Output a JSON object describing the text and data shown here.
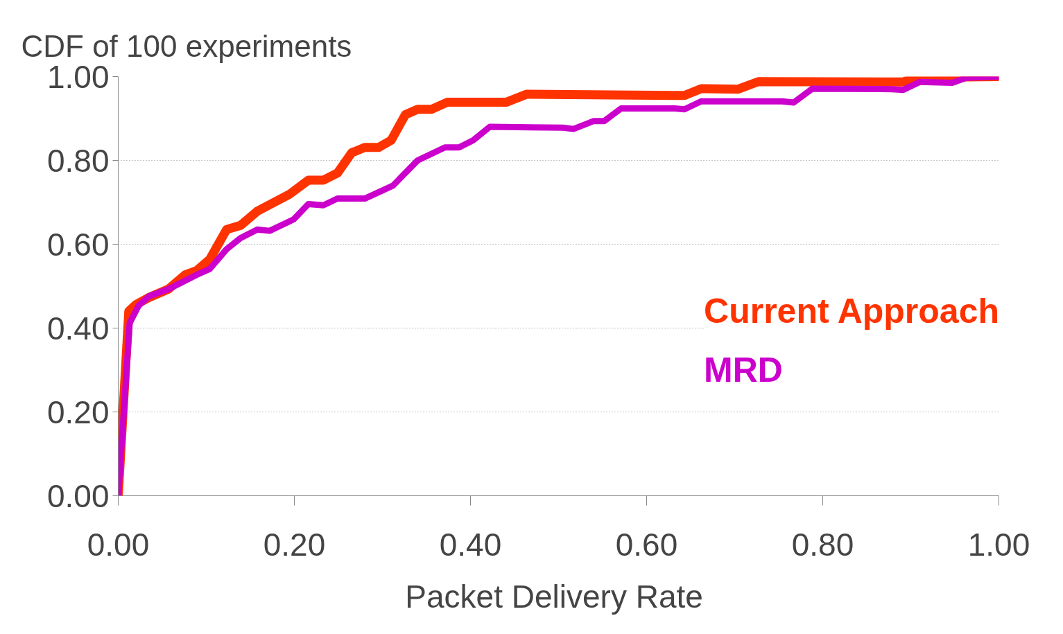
{
  "chart_data": {
    "type": "line",
    "title": "CDF of 100 experiments",
    "xlabel": "Packet Delivery  Rate",
    "xlim": [
      0,
      1
    ],
    "ylim": [
      0,
      1
    ],
    "xticks": [
      {
        "value": 0,
        "label": "0.00"
      },
      {
        "value": 0.2,
        "label": "0.20"
      },
      {
        "value": 0.4,
        "label": "0.40"
      },
      {
        "value": 0.6,
        "label": "0.60"
      },
      {
        "value": 0.8,
        "label": "0.80"
      },
      {
        "value": 1,
        "label": "1.00"
      }
    ],
    "yticks": [
      {
        "value": 0,
        "label": "0.00"
      },
      {
        "value": 0.2,
        "label": "0.20"
      },
      {
        "value": 0.4,
        "label": "0.40"
      },
      {
        "value": 0.6,
        "label": "0.60"
      },
      {
        "value": 0.8,
        "label": "0.80"
      },
      {
        "value": 1,
        "label": "1.00"
      }
    ],
    "grid": "y",
    "line_style": "solid",
    "series": [
      {
        "name": "Current Approach",
        "color": "#ff3300",
        "x": [
          0,
          0.012,
          0.02,
          0.035,
          0.057,
          0.076,
          0.089,
          0.104,
          0.123,
          0.139,
          0.158,
          0.195,
          0.216,
          0.233,
          0.249,
          0.265,
          0.28,
          0.296,
          0.31,
          0.326,
          0.34,
          0.356,
          0.374,
          0.441,
          0.464,
          0.632,
          0.643,
          0.662,
          0.704,
          0.727,
          0.879,
          0.891,
          0.906,
          1.0
        ],
        "values": [
          0,
          0.44,
          0.456,
          0.473,
          0.493,
          0.527,
          0.537,
          0.564,
          0.635,
          0.645,
          0.679,
          0.72,
          0.753,
          0.753,
          0.77,
          0.818,
          0.831,
          0.831,
          0.848,
          0.909,
          0.922,
          0.922,
          0.939,
          0.939,
          0.958,
          0.955,
          0.955,
          0.971,
          0.97,
          0.988,
          0.987,
          0.987,
          0.998,
          1.0
        ]
      },
      {
        "name": "MRD",
        "color": "#cc00cc",
        "x": [
          0,
          0.013,
          0.023,
          0.035,
          0.057,
          0.089,
          0.104,
          0.123,
          0.139,
          0.158,
          0.172,
          0.199,
          0.216,
          0.233,
          0.249,
          0.28,
          0.312,
          0.34,
          0.371,
          0.387,
          0.403,
          0.422,
          0.505,
          0.517,
          0.54,
          0.552,
          0.571,
          0.632,
          0.643,
          0.662,
          0.754,
          0.767,
          0.788,
          0.879,
          0.891,
          0.91,
          0.947,
          0.963,
          1.0
        ],
        "values": [
          0,
          0.412,
          0.453,
          0.476,
          0.493,
          0.527,
          0.541,
          0.588,
          0.615,
          0.635,
          0.632,
          0.659,
          0.696,
          0.693,
          0.709,
          0.709,
          0.74,
          0.8,
          0.831,
          0.831,
          0.848,
          0.88,
          0.878,
          0.875,
          0.894,
          0.894,
          0.924,
          0.924,
          0.922,
          0.941,
          0.941,
          0.938,
          0.971,
          0.97,
          0.968,
          0.987,
          0.985,
          0.997,
          1.0
        ]
      }
    ]
  }
}
